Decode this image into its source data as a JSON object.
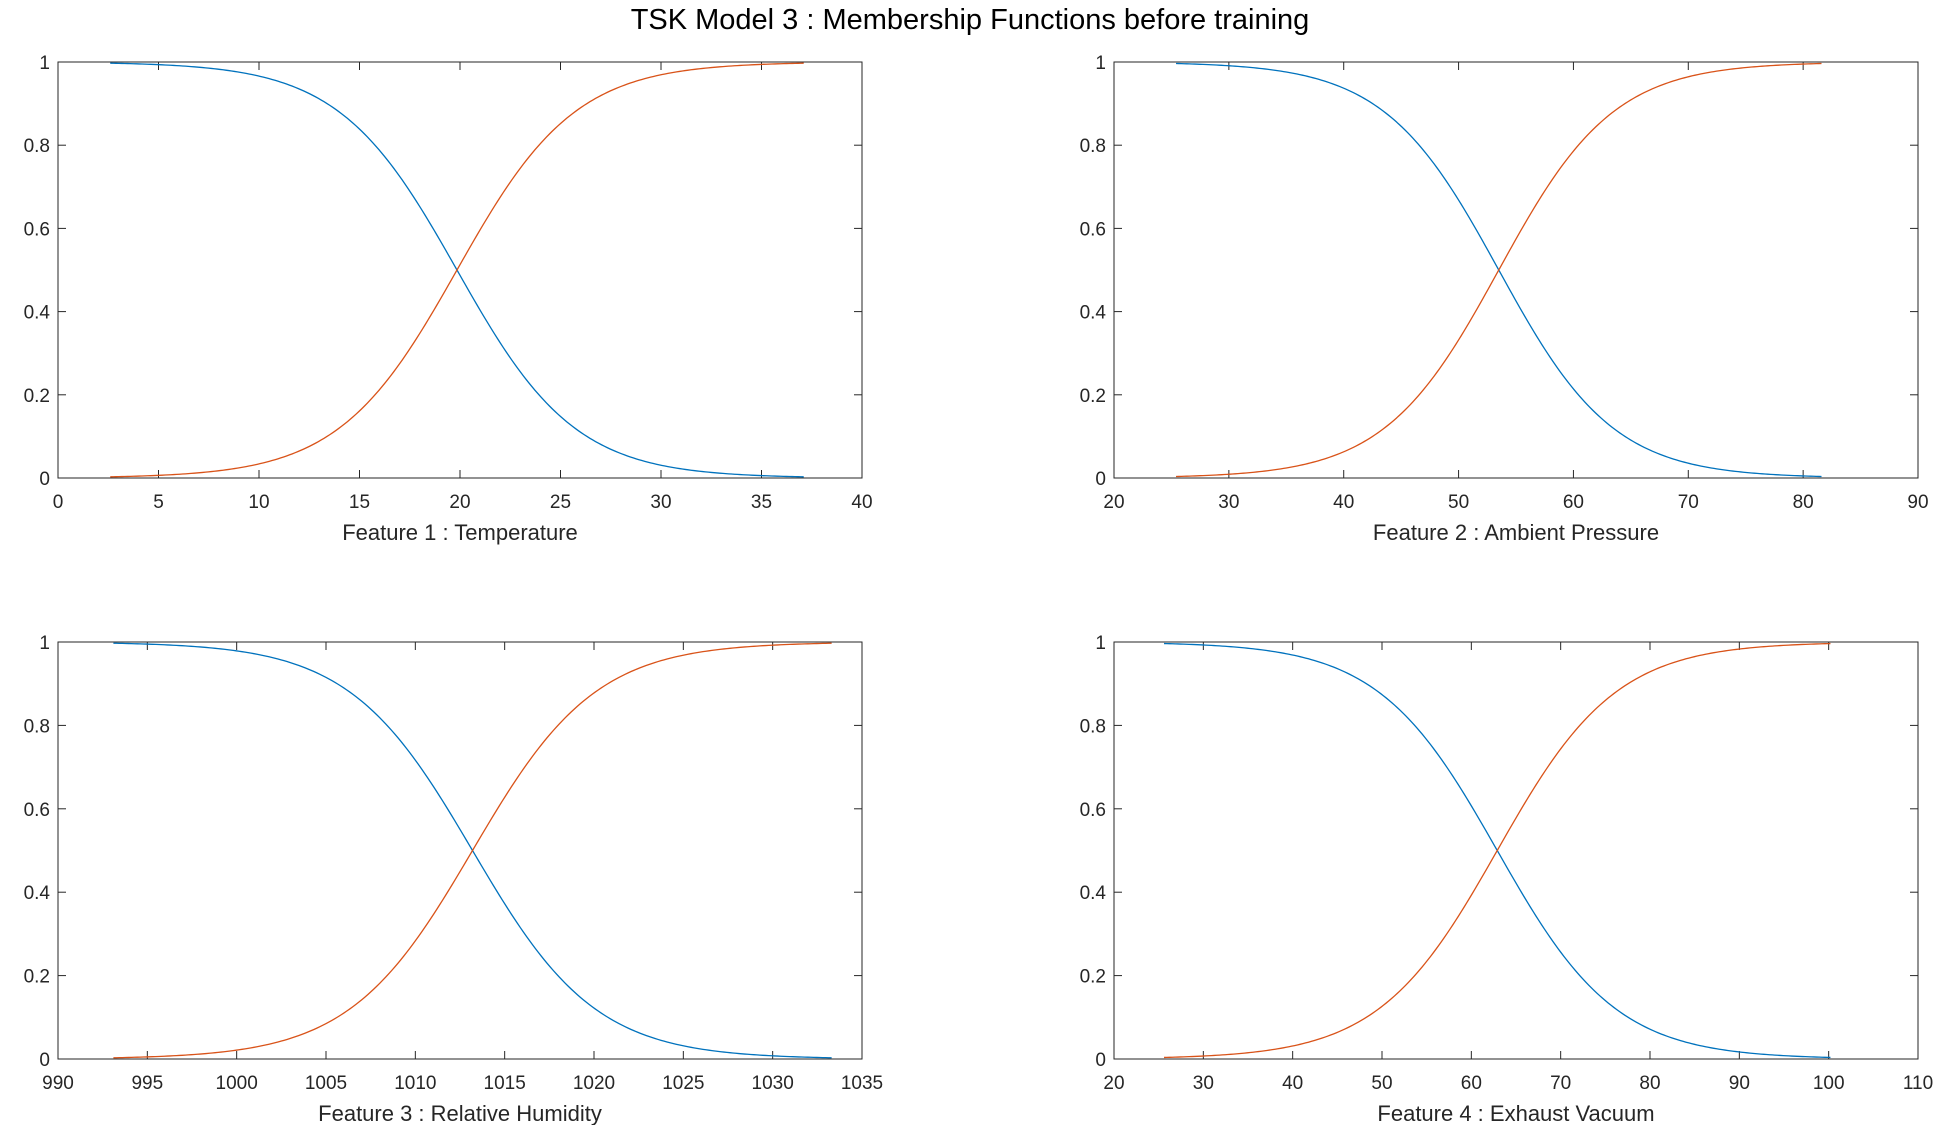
{
  "figure": {
    "title": "TSK Model 3 : Membership Functions before training"
  },
  "colors": {
    "mf1": "#0072BD",
    "mf2": "#D95319",
    "axis": "#262626"
  },
  "chart_data": [
    {
      "type": "line",
      "xlabel": "Feature 1  :  Temperature",
      "xlim": [
        0,
        40
      ],
      "ylim": [
        0,
        1
      ],
      "xticks": [
        0,
        5,
        10,
        15,
        20,
        25,
        30,
        35,
        40
      ],
      "yticks": [
        0,
        0.2,
        0.4,
        0.6,
        0.8,
        1
      ],
      "x_range": [
        2.6,
        37.1
      ],
      "series": [
        {
          "shape": "z-sigmoid",
          "center": 19.85,
          "slope": 0.34
        },
        {
          "shape": "s-sigmoid",
          "center": 19.85,
          "slope": 0.34
        }
      ]
    },
    {
      "type": "line",
      "xlabel": "Feature 2  :  Ambient Pressure",
      "xlim": [
        20,
        90
      ],
      "ylim": [
        0,
        1
      ],
      "xticks": [
        20,
        30,
        40,
        50,
        60,
        70,
        80,
        90
      ],
      "yticks": [
        0,
        0.2,
        0.4,
        0.6,
        0.8,
        1
      ],
      "x_range": [
        25.4,
        81.6
      ],
      "series": [
        {
          "shape": "z-sigmoid",
          "center": 53.5,
          "slope": 0.2
        },
        {
          "shape": "s-sigmoid",
          "center": 53.5,
          "slope": 0.2
        }
      ]
    },
    {
      "type": "line",
      "xlabel": "Feature 3  :  Relative Humidity",
      "xlim": [
        990,
        1035
      ],
      "ylim": [
        0,
        1
      ],
      "xticks": [
        990,
        995,
        1000,
        1005,
        1010,
        1015,
        1020,
        1025,
        1030,
        1035
      ],
      "yticks": [
        0,
        0.2,
        0.4,
        0.6,
        0.8,
        1
      ],
      "x_range": [
        993.1,
        1033.3
      ],
      "series": [
        {
          "shape": "z-sigmoid",
          "center": 1013.2,
          "slope": 0.29
        },
        {
          "shape": "s-sigmoid",
          "center": 1013.2,
          "slope": 0.29
        }
      ]
    },
    {
      "type": "line",
      "xlabel": "Feature 4  :  Exhaust Vacuum",
      "xlim": [
        20,
        110
      ],
      "ylim": [
        0,
        1
      ],
      "xticks": [
        20,
        30,
        40,
        50,
        60,
        70,
        80,
        90,
        100,
        110
      ],
      "yticks": [
        0,
        0.2,
        0.4,
        0.6,
        0.8,
        1
      ],
      "x_range": [
        25.6,
        100.2
      ],
      "series": [
        {
          "shape": "z-sigmoid",
          "center": 62.9,
          "slope": 0.15
        },
        {
          "shape": "s-sigmoid",
          "center": 62.9,
          "slope": 0.15
        }
      ]
    }
  ]
}
